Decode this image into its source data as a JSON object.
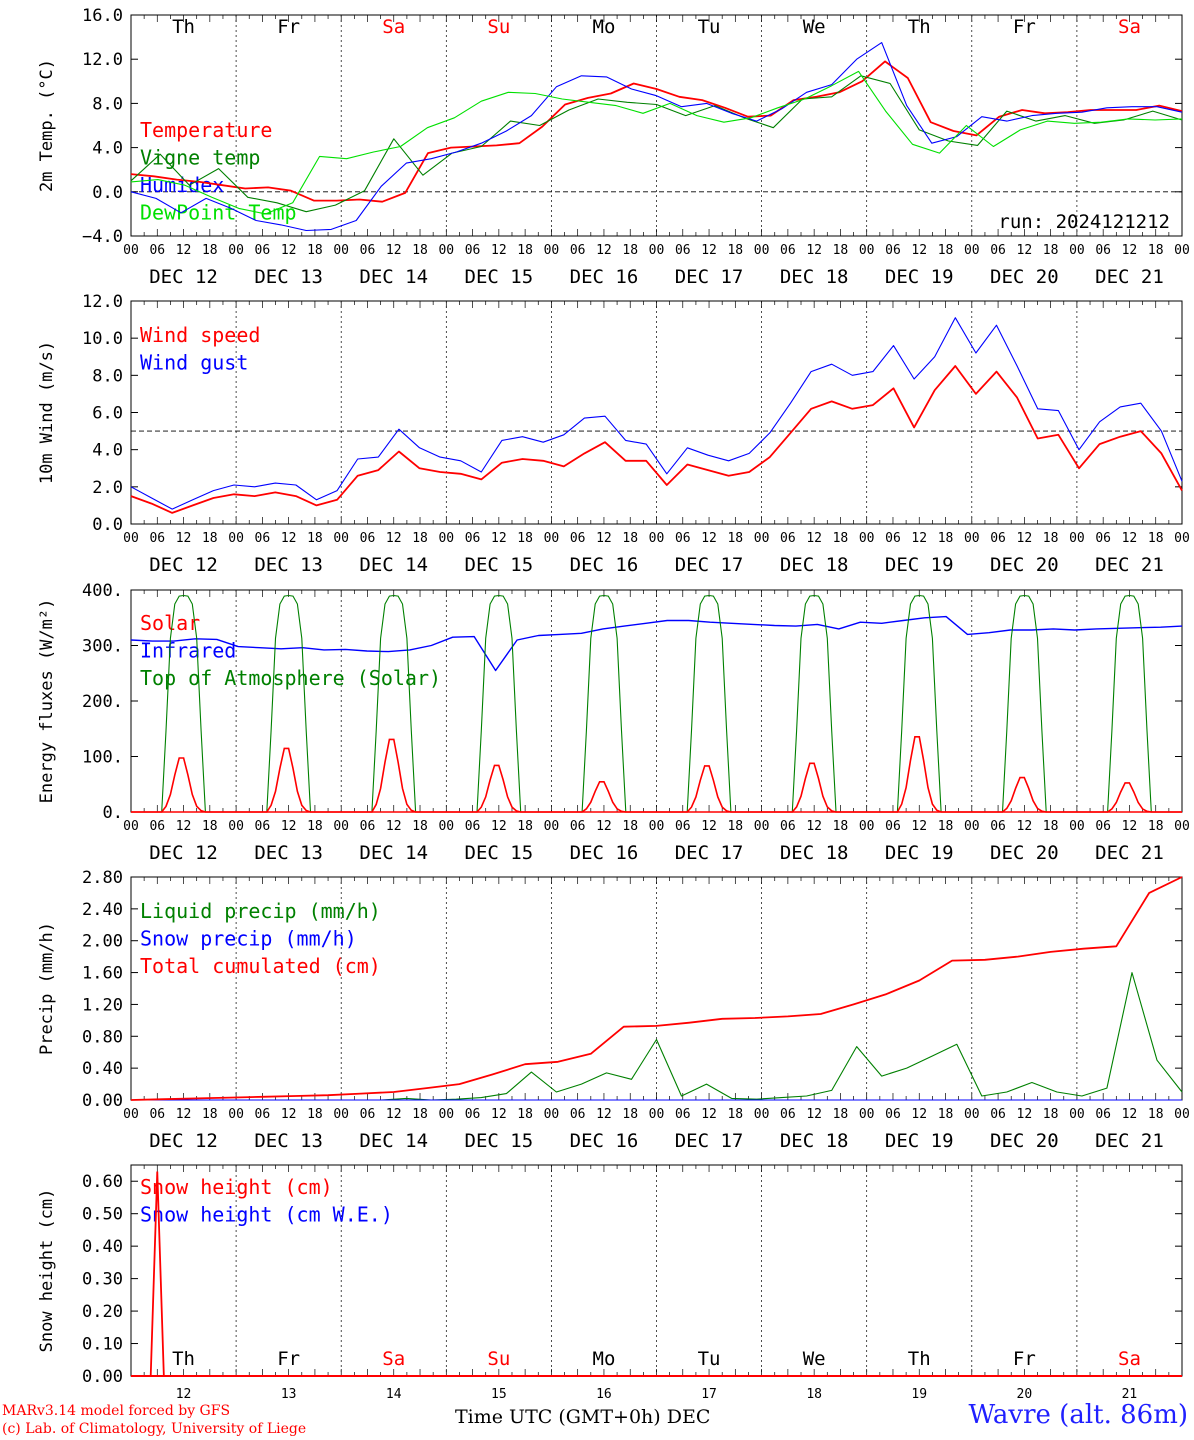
{
  "run_label": "run: 2024121212",
  "footer": {
    "model": "MARv3.14 model forced by GFS",
    "lab": "(c) Lab. of Climatology, University of Liege",
    "station": "Wavre (alt. 86m)",
    "x_title": "Time UTC (GMT+0h) DEC"
  },
  "colors": {
    "red": "#ff0000",
    "blue": "#0000ff",
    "green": "#008000",
    "lightgreen": "#00e000",
    "weekend": "#ff0000",
    "weekday": "#000000"
  },
  "days": [
    "Th",
    "Fr",
    "Sa",
    "Su",
    "Mo",
    "Tu",
    "We",
    "Th",
    "Fr",
    "Sa"
  ],
  "weekend": [
    false,
    false,
    true,
    true,
    false,
    false,
    false,
    false,
    false,
    true
  ],
  "date_labels": [
    "DEC 12",
    "DEC 13",
    "DEC 14",
    "DEC 15",
    "DEC 16",
    "DEC 17",
    "DEC 18",
    "DEC 19",
    "DEC 20",
    "DEC 21"
  ],
  "day_numbers": [
    "12",
    "13",
    "14",
    "15",
    "16",
    "17",
    "18",
    "19",
    "20",
    "21"
  ],
  "hour_ticks": [
    "00",
    "06",
    "12",
    "18"
  ],
  "chart_data": [
    {
      "type": "line",
      "ylabel": "2m Temp. (°C)",
      "ylim": [
        -4,
        16
      ],
      "yticks": [
        "−4.0",
        "0.0",
        "4.0",
        "8.0",
        "12.0",
        "16.0"
      ],
      "ytick_values": [
        -4,
        0,
        4,
        8,
        12,
        16
      ],
      "hline": 0,
      "show_days": true,
      "x_start": "2024-12-12 00 UTC",
      "x_end": "2024-12-22 00 UTC",
      "legend": [
        "Temperature",
        "Vigne temp",
        "Humidex",
        "DewPoint Temp"
      ],
      "series": [
        {
          "name": "Temperature",
          "color": "#ff0000",
          "step_hours": 6,
          "values": [
            1.6,
            1.4,
            1.1,
            0.9,
            0.6,
            0.3,
            0.4,
            0.1,
            -0.8,
            -0.8,
            -0.7,
            -0.9,
            -0.1,
            3.5,
            4.0,
            4.1,
            4.2,
            4.4,
            5.9,
            7.9,
            8.5,
            8.9,
            9.8,
            9.3,
            8.6,
            8.3,
            7.6,
            6.8,
            6.9,
            8.3,
            8.6,
            9.0,
            10.0,
            11.8,
            10.3,
            6.3,
            5.5,
            5.1,
            6.8,
            7.4,
            7.1,
            7.2,
            7.4,
            7.4,
            7.4,
            7.8,
            7.3
          ]
        },
        {
          "name": "Vigne temp",
          "color": "#008000",
          "step_hours": 6,
          "values": [
            1.0,
            3.4,
            0.6,
            2.1,
            -0.5,
            -1.0,
            -1.8,
            -1.2,
            0.1,
            4.8,
            1.5,
            3.5,
            4.1,
            6.4,
            6.0,
            7.4,
            8.4,
            8.1,
            7.9,
            6.9,
            7.8,
            6.7,
            5.8,
            8.4,
            8.6,
            10.5,
            9.8,
            5.6,
            4.6,
            4.2,
            7.3,
            6.4,
            6.9,
            6.2,
            6.5,
            7.3,
            6.5
          ]
        },
        {
          "name": "Humidex",
          "color": "#0000ff",
          "step_hours": 6,
          "values": [
            0.0,
            -0.6,
            -1.9,
            -0.6,
            -1.5,
            -2.6,
            -3.0,
            -3.5,
            -3.4,
            -2.6,
            0.5,
            2.6,
            3.0,
            3.6,
            4.4,
            5.5,
            6.9,
            9.5,
            10.5,
            10.4,
            9.3,
            8.7,
            7.7,
            8.0,
            7.1,
            6.4,
            7.5,
            9.0,
            9.7,
            12.0,
            13.5,
            7.8,
            4.4,
            5.0,
            6.8,
            6.4,
            6.9,
            7.1,
            7.2,
            7.6,
            7.7,
            7.7,
            7.2
          ]
        },
        {
          "name": "DewPoint Temp",
          "color": "#00e000",
          "step_hours": 6,
          "values": [
            0.9,
            1.1,
            0.6,
            -0.5,
            -1.5,
            -2.0,
            -1.0,
            3.2,
            3.0,
            3.6,
            4.1,
            5.8,
            6.7,
            8.2,
            9.0,
            8.9,
            8.4,
            8.1,
            7.8,
            7.1,
            8.0,
            6.9,
            6.3,
            6.7,
            7.6,
            8.4,
            9.6,
            10.9,
            7.3,
            4.3,
            3.5,
            6.0,
            4.1,
            5.6,
            6.4,
            6.2,
            6.3,
            6.6,
            6.5,
            6.6
          ]
        }
      ]
    },
    {
      "type": "line",
      "ylabel": "10m Wind (m/s)",
      "ylim": [
        0,
        12
      ],
      "yticks": [
        "0.0",
        "2.0",
        "4.0",
        "6.0",
        "8.0",
        "10.0",
        "12.0"
      ],
      "ytick_values": [
        0,
        2,
        4,
        6,
        8,
        10,
        12
      ],
      "hline": 5,
      "show_days": false,
      "legend": [
        "Wind speed",
        "Wind gust"
      ],
      "series": [
        {
          "name": "Wind speed",
          "color": "#ff0000",
          "step_hours": 6,
          "values": [
            1.5,
            1.1,
            0.6,
            1.0,
            1.4,
            1.6,
            1.5,
            1.7,
            1.5,
            1.0,
            1.3,
            2.6,
            2.9,
            3.9,
            3.0,
            2.8,
            2.7,
            2.4,
            3.3,
            3.5,
            3.4,
            3.1,
            3.8,
            4.4,
            3.4,
            3.4,
            2.1,
            3.2,
            2.9,
            2.6,
            2.8,
            3.6,
            4.9,
            6.2,
            6.6,
            6.2,
            6.4,
            7.3,
            5.2,
            7.2,
            8.5,
            7.0,
            8.2,
            6.8,
            4.6,
            4.8,
            3.0,
            4.3,
            4.7,
            5.0,
            3.8,
            1.8
          ]
        },
        {
          "name": "Wind gust",
          "color": "#0000ff",
          "step_hours": 6,
          "values": [
            2.0,
            1.4,
            0.8,
            1.3,
            1.8,
            2.1,
            2.0,
            2.2,
            2.1,
            1.3,
            1.8,
            3.5,
            3.6,
            5.1,
            4.1,
            3.6,
            3.4,
            2.8,
            4.5,
            4.7,
            4.4,
            4.8,
            5.7,
            5.8,
            4.5,
            4.3,
            2.7,
            4.1,
            3.7,
            3.4,
            3.8,
            4.9,
            6.5,
            8.2,
            8.6,
            8.0,
            8.2,
            9.6,
            7.8,
            9.0,
            11.1,
            9.2,
            10.7,
            8.5,
            6.2,
            6.1,
            4.0,
            5.5,
            6.3,
            6.5,
            5.0,
            2.3
          ]
        }
      ]
    },
    {
      "type": "line",
      "ylabel": "Energy fluxes (W/m²)",
      "ylim": [
        0,
        400
      ],
      "yticks": [
        "0.",
        "100.",
        "200.",
        "300.",
        "400."
      ],
      "ytick_values": [
        0,
        100,
        200,
        300,
        400
      ],
      "show_days": false,
      "legend": [
        "Solar",
        "Infrared",
        "Top of Atmosphere (Solar)"
      ],
      "solar_peaks": [
        102,
        120,
        137,
        88,
        57,
        87,
        92,
        142,
        65,
        55
      ],
      "toa_peak": 390,
      "infrared": {
        "step_hours": 6,
        "values": [
          310,
          308,
          308,
          312,
          311,
          298,
          296,
          294,
          296,
          292,
          293,
          290,
          289,
          292,
          300,
          315,
          316,
          255,
          310,
          318,
          320,
          322,
          330,
          335,
          340,
          345,
          345,
          342,
          340,
          338,
          336,
          335,
          338,
          330,
          342,
          340,
          345,
          350,
          352,
          320,
          323,
          328,
          328,
          330,
          328,
          330,
          331,
          332,
          333,
          335
        ]
      }
    },
    {
      "type": "line",
      "ylabel": "Precip (mm/h)",
      "ylim": [
        0,
        2.8
      ],
      "yticks": [
        "0.00",
        "0.40",
        "0.80",
        "1.20",
        "1.60",
        "2.00",
        "2.40",
        "2.80"
      ],
      "ytick_values": [
        0,
        0.4,
        0.8,
        1.2,
        1.6,
        2.0,
        2.4,
        2.8
      ],
      "show_days": false,
      "legend": [
        "Liquid precip (mm/h)",
        "Snow precip (mm/h)",
        "Total cumulated (cm)"
      ],
      "series": [
        {
          "name": "Liquid precip (mm/h)",
          "color": "#008000",
          "step_hours": 6,
          "values": [
            0,
            0,
            0,
            0,
            0,
            0,
            0,
            0,
            0,
            0,
            0,
            0.02,
            0,
            0.01,
            0.03,
            0.08,
            0.35,
            0.1,
            0.2,
            0.34,
            0.26,
            0.76,
            0.05,
            0.2,
            0.02,
            0.01,
            0.03,
            0.05,
            0.12,
            0.67,
            0.3,
            0.4,
            0.55,
            0.7,
            0.05,
            0.1,
            0.22,
            0.1,
            0.05,
            0.15,
            1.6,
            0.5,
            0.1
          ]
        },
        {
          "name": "Snow precip (mm/h)",
          "color": "#0000ff",
          "step_hours": 6,
          "values": [
            0,
            0,
            0,
            0,
            0,
            0,
            0,
            0,
            0,
            0,
            0,
            0,
            0,
            0,
            0,
            0,
            0,
            0,
            0,
            0,
            0,
            0,
            0,
            0,
            0,
            0,
            0,
            0,
            0,
            0,
            0,
            0,
            0,
            0,
            0,
            0,
            0,
            0,
            0,
            0,
            0
          ]
        },
        {
          "name": "Total cumulated (cm)",
          "color": "#ff0000",
          "step_hours": 6,
          "values": [
            0,
            0.01,
            0.02,
            0.03,
            0.04,
            0.05,
            0.06,
            0.08,
            0.1,
            0.15,
            0.2,
            0.32,
            0.45,
            0.48,
            0.58,
            0.92,
            0.93,
            0.97,
            1.02,
            1.03,
            1.05,
            1.08,
            1.2,
            1.33,
            1.5,
            1.75,
            1.76,
            1.8,
            1.86,
            1.9,
            1.93,
            2.6,
            2.8
          ]
        }
      ]
    },
    {
      "type": "line",
      "ylabel": "Snow height (cm)",
      "ylim": [
        0,
        0.65
      ],
      "yticks": [
        "0.00",
        "0.10",
        "0.20",
        "0.30",
        "0.40",
        "0.50",
        "0.60"
      ],
      "ytick_values": [
        0,
        0.1,
        0.2,
        0.3,
        0.4,
        0.5,
        0.6
      ],
      "show_days": true,
      "legend": [
        "Snow height (cm)",
        "Snow height (cm W.E.)"
      ],
      "spike": {
        "day": 12,
        "hour": 6,
        "value": 0.63
      }
    }
  ]
}
